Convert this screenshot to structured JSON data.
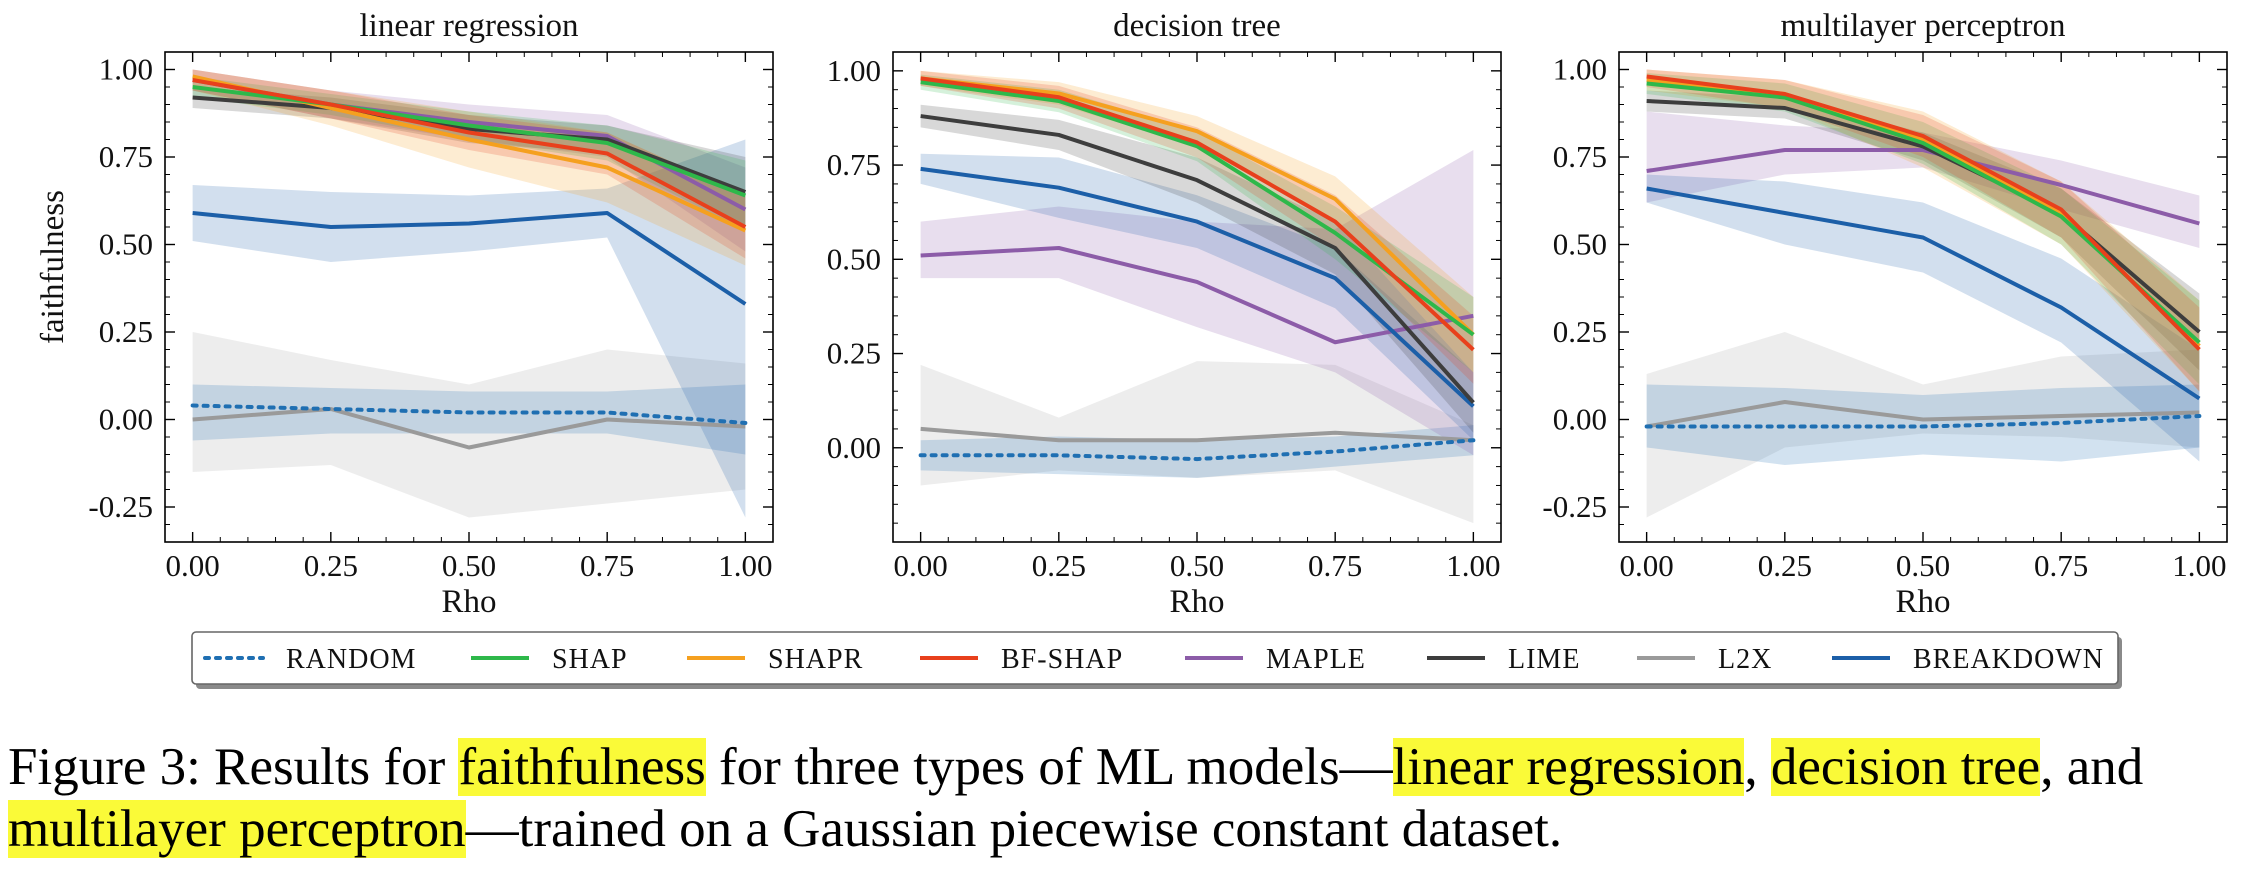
{
  "figure": {
    "caption": {
      "prefix": "Figure 3: Results for ",
      "hl1": "faithfulness",
      "mid1": " for three types of ML models—",
      "hl2": "linear regression",
      "mid2": ", ",
      "hl3": "decision tree",
      "mid3": ", and ",
      "hl4": "multilayer perceptron",
      "suffix": "—trained on a Gaussian piecewise constant dataset."
    }
  },
  "colors": {
    "RANDOM": "#1f6fb2",
    "SHAP": "#2eb84a",
    "SHAPR": "#f5a01f",
    "BF-SHAP": "#e8401c",
    "MAPLE": "#8c5ca8",
    "LIME": "#3d3d3d",
    "L2X": "#9a9a9a",
    "BREAKDOWN": "#1c5fa8",
    "highlight": "#fafa38"
  },
  "chart_data": [
    {
      "type": "line",
      "title": "linear regression",
      "xlabel": "Rho",
      "ylabel": "faithfulness",
      "x": [
        0.0,
        0.25,
        0.5,
        0.75,
        1.0
      ],
      "xticks": [
        "0.00",
        "0.25",
        "0.50",
        "0.75",
        "1.00"
      ],
      "yticks": [
        "-0.25",
        "0.00",
        "0.25",
        "0.50",
        "0.75",
        "1.00"
      ],
      "ylim": [
        -0.35,
        1.05
      ],
      "xlim": [
        -0.05,
        1.05
      ],
      "grid": false,
      "series": [
        {
          "name": "RANDOM",
          "style": "dotted",
          "values": [
            0.04,
            0.03,
            0.02,
            0.02,
            -0.01
          ],
          "band": [
            [
              -0.06,
              0.1
            ],
            [
              -0.04,
              0.09
            ],
            [
              -0.04,
              0.08
            ],
            [
              -0.04,
              0.08
            ],
            [
              -0.1,
              0.1
            ]
          ]
        },
        {
          "name": "SHAP",
          "values": [
            0.95,
            0.9,
            0.84,
            0.79,
            0.64
          ],
          "band": [
            [
              0.92,
              0.98
            ],
            [
              0.87,
              0.93
            ],
            [
              0.8,
              0.88
            ],
            [
              0.74,
              0.84
            ],
            [
              0.54,
              0.74
            ]
          ]
        },
        {
          "name": "SHAPR",
          "values": [
            0.98,
            0.89,
            0.8,
            0.72,
            0.54
          ],
          "band": [
            [
              0.94,
              1.0
            ],
            [
              0.84,
              0.94
            ],
            [
              0.72,
              0.88
            ],
            [
              0.62,
              0.82
            ],
            [
              0.44,
              0.64
            ]
          ]
        },
        {
          "name": "BF-SHAP",
          "values": [
            0.97,
            0.9,
            0.82,
            0.76,
            0.55
          ],
          "band": [
            [
              0.94,
              1.0
            ],
            [
              0.86,
              0.94
            ],
            [
              0.77,
              0.87
            ],
            [
              0.7,
              0.82
            ],
            [
              0.46,
              0.64
            ]
          ]
        },
        {
          "name": "MAPLE",
          "values": [
            0.97,
            0.9,
            0.85,
            0.81,
            0.6
          ],
          "band": [
            [
              0.94,
              1.0
            ],
            [
              0.86,
              0.94
            ],
            [
              0.8,
              0.9
            ],
            [
              0.75,
              0.87
            ],
            [
              0.48,
              0.72
            ]
          ]
        },
        {
          "name": "LIME",
          "values": [
            0.92,
            0.89,
            0.83,
            0.8,
            0.65
          ],
          "band": [
            [
              0.89,
              0.95
            ],
            [
              0.86,
              0.92
            ],
            [
              0.79,
              0.87
            ],
            [
              0.76,
              0.84
            ],
            [
              0.55,
              0.75
            ]
          ]
        },
        {
          "name": "L2X",
          "values": [
            0.0,
            0.03,
            -0.08,
            0.0,
            -0.02
          ],
          "band": [
            [
              -0.15,
              0.25
            ],
            [
              -0.13,
              0.17
            ],
            [
              -0.28,
              0.1
            ],
            [
              -0.24,
              0.2
            ],
            [
              -0.2,
              0.16
            ]
          ]
        },
        {
          "name": "BREAKDOWN",
          "values": [
            0.59,
            0.55,
            0.56,
            0.59,
            0.33
          ],
          "band": [
            [
              0.51,
              0.67
            ],
            [
              0.45,
              0.65
            ],
            [
              0.48,
              0.64
            ],
            [
              0.52,
              0.66
            ],
            [
              -0.28,
              0.8
            ]
          ]
        }
      ]
    },
    {
      "type": "line",
      "title": "decision tree",
      "xlabel": "Rho",
      "ylabel": "",
      "x": [
        0.0,
        0.25,
        0.5,
        0.75,
        1.0
      ],
      "xticks": [
        "0.00",
        "0.25",
        "0.50",
        "0.75",
        "1.00"
      ],
      "yticks": [
        "0.00",
        "0.25",
        "0.50",
        "0.75",
        "1.00"
      ],
      "ylim": [
        -0.25,
        1.05
      ],
      "xlim": [
        -0.05,
        1.05
      ],
      "grid": false,
      "series": [
        {
          "name": "RANDOM",
          "style": "dotted",
          "values": [
            -0.02,
            -0.02,
            -0.03,
            -0.01,
            0.02
          ],
          "band": [
            [
              -0.06,
              0.02
            ],
            [
              -0.07,
              0.03
            ],
            [
              -0.08,
              0.02
            ],
            [
              -0.05,
              0.03
            ],
            [
              -0.02,
              0.06
            ]
          ]
        },
        {
          "name": "SHAP",
          "values": [
            0.97,
            0.92,
            0.8,
            0.57,
            0.3
          ],
          "band": [
            [
              0.95,
              0.99
            ],
            [
              0.89,
              0.95
            ],
            [
              0.76,
              0.84
            ],
            [
              0.5,
              0.64
            ],
            [
              0.2,
              0.4
            ]
          ]
        },
        {
          "name": "SHAPR",
          "values": [
            0.98,
            0.94,
            0.84,
            0.66,
            0.3
          ],
          "band": [
            [
              0.96,
              1.0
            ],
            [
              0.91,
              0.97
            ],
            [
              0.8,
              0.88
            ],
            [
              0.6,
              0.72
            ],
            [
              0.2,
              0.4
            ]
          ]
        },
        {
          "name": "BF-SHAP",
          "values": [
            0.98,
            0.93,
            0.81,
            0.6,
            0.26
          ],
          "band": [
            [
              0.96,
              1.0
            ],
            [
              0.9,
              0.96
            ],
            [
              0.77,
              0.85
            ],
            [
              0.53,
              0.67
            ],
            [
              0.17,
              0.35
            ]
          ]
        },
        {
          "name": "MAPLE",
          "values": [
            0.51,
            0.53,
            0.44,
            0.28,
            0.35
          ],
          "band": [
            [
              0.45,
              0.6
            ],
            [
              0.45,
              0.64
            ],
            [
              0.32,
              0.6
            ],
            [
              0.2,
              0.58
            ],
            [
              -0.02,
              0.79
            ]
          ]
        },
        {
          "name": "LIME",
          "values": [
            0.88,
            0.83,
            0.71,
            0.53,
            0.12
          ],
          "band": [
            [
              0.85,
              0.91
            ],
            [
              0.79,
              0.87
            ],
            [
              0.65,
              0.77
            ],
            [
              0.46,
              0.6
            ],
            [
              0.04,
              0.2
            ]
          ]
        },
        {
          "name": "L2X",
          "values": [
            0.05,
            0.02,
            0.02,
            0.04,
            0.02
          ],
          "band": [
            [
              -0.1,
              0.22
            ],
            [
              -0.06,
              0.08
            ],
            [
              -0.08,
              0.23
            ],
            [
              -0.06,
              0.22
            ],
            [
              -0.2,
              0.06
            ]
          ]
        },
        {
          "name": "BREAKDOWN",
          "values": [
            0.74,
            0.69,
            0.6,
            0.45,
            0.11
          ],
          "band": [
            [
              0.7,
              0.78
            ],
            [
              0.61,
              0.77
            ],
            [
              0.53,
              0.67
            ],
            [
              0.37,
              0.53
            ],
            [
              0.02,
              0.2
            ]
          ]
        }
      ]
    },
    {
      "type": "line",
      "title": "multilayer perceptron",
      "xlabel": "Rho",
      "ylabel": "",
      "x": [
        0.0,
        0.25,
        0.5,
        0.75,
        1.0
      ],
      "xticks": [
        "0.00",
        "0.25",
        "0.50",
        "0.75",
        "1.00"
      ],
      "yticks": [
        "-0.25",
        "0.00",
        "0.25",
        "0.50",
        "0.75",
        "1.00"
      ],
      "ylim": [
        -0.35,
        1.05
      ],
      "xlim": [
        -0.05,
        1.05
      ],
      "grid": false,
      "series": [
        {
          "name": "RANDOM",
          "style": "dotted",
          "values": [
            -0.02,
            -0.02,
            -0.02,
            -0.01,
            0.01
          ],
          "band": [
            [
              -0.08,
              0.1
            ],
            [
              -0.13,
              0.09
            ],
            [
              -0.1,
              0.07
            ],
            [
              -0.12,
              0.09
            ],
            [
              -0.08,
              0.1
            ]
          ]
        },
        {
          "name": "SHAP",
          "values": [
            0.96,
            0.92,
            0.79,
            0.58,
            0.22
          ],
          "band": [
            [
              0.93,
              0.99
            ],
            [
              0.88,
              0.96
            ],
            [
              0.73,
              0.85
            ],
            [
              0.5,
              0.66
            ],
            [
              0.1,
              0.34
            ]
          ]
        },
        {
          "name": "SHAPR",
          "values": [
            0.97,
            0.93,
            0.8,
            0.59,
            0.21
          ],
          "band": [
            [
              0.94,
              1.0
            ],
            [
              0.89,
              0.97
            ],
            [
              0.72,
              0.88
            ],
            [
              0.5,
              0.68
            ],
            [
              0.08,
              0.34
            ]
          ]
        },
        {
          "name": "BF-SHAP",
          "values": [
            0.98,
            0.93,
            0.81,
            0.6,
            0.2
          ],
          "band": [
            [
              0.95,
              1.0
            ],
            [
              0.89,
              0.97
            ],
            [
              0.75,
              0.87
            ],
            [
              0.52,
              0.68
            ],
            [
              0.08,
              0.32
            ]
          ]
        },
        {
          "name": "MAPLE",
          "values": [
            0.71,
            0.77,
            0.77,
            0.67,
            0.56
          ],
          "band": [
            [
              0.62,
              0.88
            ],
            [
              0.7,
              0.84
            ],
            [
              0.72,
              0.82
            ],
            [
              0.6,
              0.74
            ],
            [
              0.49,
              0.64
            ]
          ]
        },
        {
          "name": "LIME",
          "values": [
            0.91,
            0.89,
            0.78,
            0.59,
            0.25
          ],
          "band": [
            [
              0.88,
              0.94
            ],
            [
              0.86,
              0.92
            ],
            [
              0.74,
              0.82
            ],
            [
              0.52,
              0.66
            ],
            [
              0.14,
              0.36
            ]
          ]
        },
        {
          "name": "L2X",
          "values": [
            -0.02,
            0.05,
            0.0,
            0.01,
            0.02
          ],
          "band": [
            [
              -0.28,
              0.13
            ],
            [
              -0.08,
              0.25
            ],
            [
              -0.04,
              0.1
            ],
            [
              -0.05,
              0.18
            ],
            [
              -0.08,
              0.2
            ]
          ]
        },
        {
          "name": "BREAKDOWN",
          "values": [
            0.66,
            0.59,
            0.52,
            0.32,
            0.06
          ],
          "band": [
            [
              0.62,
              0.7
            ],
            [
              0.5,
              0.68
            ],
            [
              0.42,
              0.62
            ],
            [
              0.22,
              0.46
            ],
            [
              -0.12,
              0.2
            ]
          ]
        }
      ]
    }
  ],
  "legend": {
    "placement": "bottom",
    "entries": [
      "RANDOM",
      "SHAP",
      "SHAPR",
      "BF-SHAP",
      "MAPLE",
      "LIME",
      "L2X",
      "BREAKDOWN"
    ]
  }
}
